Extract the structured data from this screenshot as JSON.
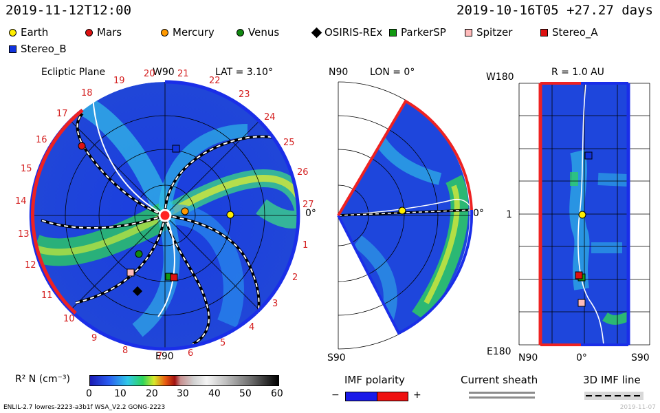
{
  "header": {
    "left_time": "2019-11-12T12:00",
    "right_time": "2019-10-16T05 +27.27 days"
  },
  "legend": [
    {
      "name": "Earth",
      "color": "#ffee00",
      "shape": "circle"
    },
    {
      "name": "Mars",
      "color": "#dd1111",
      "shape": "circle"
    },
    {
      "name": "Mercury",
      "color": "#ff9900",
      "shape": "circle"
    },
    {
      "name": "Venus",
      "color": "#118811",
      "shape": "circle"
    },
    {
      "name": "OSIRIS-REx",
      "color": "#000000",
      "shape": "diamond"
    },
    {
      "name": "ParkerSP",
      "color": "#119911",
      "shape": "square"
    },
    {
      "name": "Spitzer",
      "color": "#ffbbbb",
      "shape": "square"
    },
    {
      "name": "Stereo_A",
      "color": "#dd1111",
      "shape": "square"
    },
    {
      "name": "Stereo_B",
      "color": "#1133dd",
      "shape": "square"
    }
  ],
  "panel1": {
    "title": "Ecliptic Plane",
    "top": "W90",
    "lat": "LAT = 3.10°",
    "bottom": "E90",
    "right": "0°",
    "rotation_labels": [
      "19",
      "20",
      "21",
      "22",
      "23",
      "24",
      "25",
      "26",
      "27",
      "1",
      "2",
      "3",
      "4",
      "5",
      "6",
      "7",
      "8",
      "9",
      "10",
      "11",
      "12",
      "13",
      "14",
      "15",
      "16",
      "17",
      "18"
    ]
  },
  "panel2": {
    "top": "N90",
    "lon": "LON = 0°",
    "bottom": "S90",
    "right": "0°"
  },
  "panel3": {
    "top_left": "W180",
    "title": "R = 1.0 AU",
    "mid_left": "1",
    "bottom_left": "E180",
    "x_labels": [
      "N90",
      "0°",
      "S90"
    ]
  },
  "colorbar": {
    "label": "R² N (cm⁻³)",
    "ticks": [
      "0",
      "10",
      "20",
      "30",
      "40",
      "50",
      "60"
    ]
  },
  "imf": {
    "title": "IMF polarity",
    "minus": "−",
    "plus": "+"
  },
  "sheath": {
    "title": "Current sheath"
  },
  "imf3d": {
    "title": "3D IMF line"
  },
  "footer": {
    "left": "ENLIL-2.7 lowres-2223-a3b1f WSA_V2.2 GONG-2223",
    "right": "2019-11-07"
  },
  "chart_data": {
    "type": "heatmap",
    "quantity": "R² N (cm⁻³)",
    "colorbar_range": [
      0,
      60
    ],
    "bodies": [
      "Earth",
      "Mars",
      "Mercury",
      "Venus",
      "OSIRIS-REx",
      "ParkerSP",
      "Spitzer",
      "Stereo_A",
      "Stereo_B"
    ]
  },
  "colors": {
    "colorbar": [
      "#1a1ab4",
      "#2a5cf0",
      "#30c8e8",
      "#2ed45a",
      "#d8e82a",
      "#e85a10",
      "#a01010",
      "#b0b0b0",
      "#f4f4f4",
      "#000000"
    ]
  }
}
